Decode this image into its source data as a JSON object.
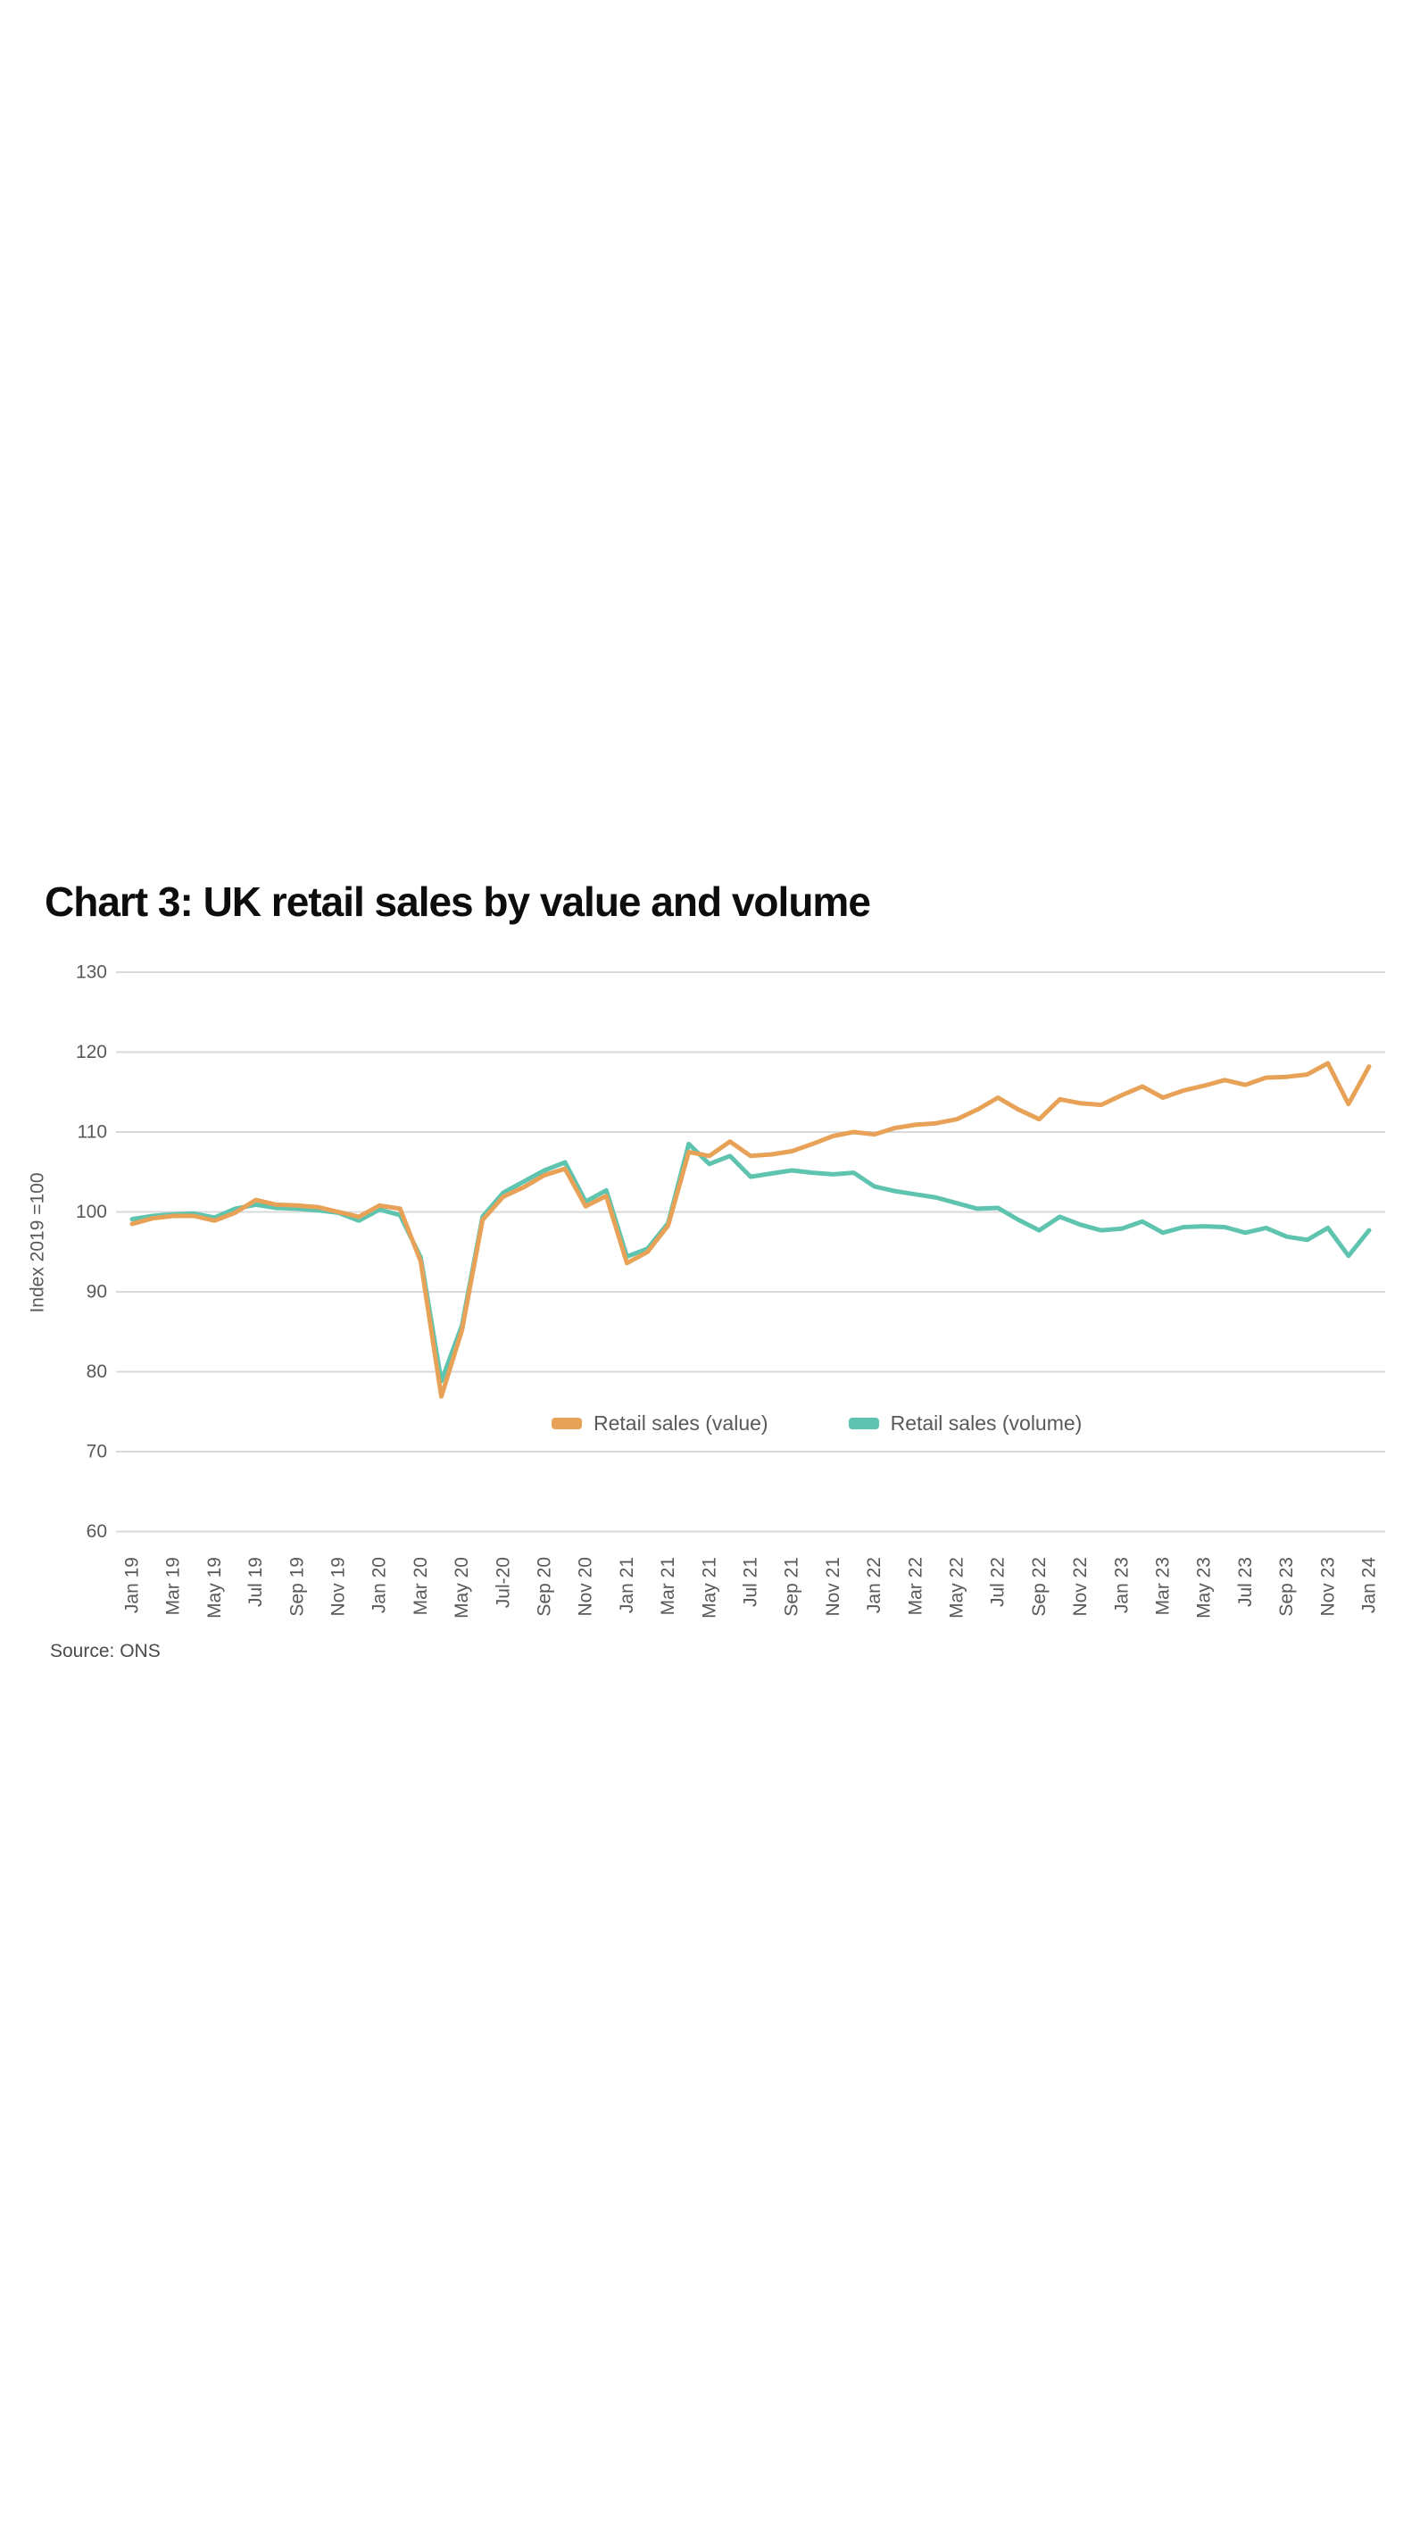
{
  "chart": {
    "title": "Chart 3: UK retail sales by value and volume",
    "y_axis_title": "Index 2019 =100",
    "source": "Source: ONS"
  },
  "legend": {
    "items": [
      {
        "label": "Retail sales (value)",
        "color": "#E8A257"
      },
      {
        "label": "Retail sales (volume)",
        "color": "#5FC4AF"
      }
    ]
  },
  "chart_data": {
    "type": "line",
    "title": "Chart 3: UK retail sales by value and volume",
    "ylabel": "Index 2019 =100",
    "xlabel": "",
    "ylim": [
      60,
      130
    ],
    "y_ticks": [
      130,
      120,
      110,
      100,
      90,
      80,
      70,
      60
    ],
    "grid": "horizontal",
    "grid_color": "#d9d9d9",
    "text_color": "#595959",
    "legend_position": "inside-bottom-center",
    "x_interval": "monthly",
    "x_range": "Jan 2019 to Jan 2024",
    "x_tick_labels": [
      "Jan 19",
      "Mar 19",
      "May 19",
      "Jul 19",
      "Sep 19",
      "Nov 19",
      "Jan 20",
      "Mar 20",
      "May 20",
      "Jul-20",
      "Sep 20",
      "Nov 20",
      "Jan 21",
      "Mar 21",
      "May 21",
      "Jul 21",
      "Sep 21",
      "Nov 21",
      "Jan 22",
      "Mar 22",
      "May 22",
      "Jul 22",
      "Sep 22",
      "Nov 22",
      "Jan 23",
      "Mar 23",
      "May 23",
      "Jul 23",
      "Sep 23",
      "Nov 23",
      "Jan 24"
    ],
    "series": [
      {
        "name": "Retail sales (value)",
        "color": "#E8A257",
        "values": [
          98.5,
          99.2,
          99.5,
          99.5,
          98.9,
          99.9,
          101.5,
          100.9,
          100.8,
          100.6,
          100.0,
          99.4,
          100.8,
          100.4,
          93.8,
          76.9,
          85.2,
          99.0,
          101.9,
          103.1,
          104.6,
          105.4,
          100.7,
          102.0,
          93.6,
          95.0,
          98.3,
          107.5,
          107.0,
          108.8,
          107.0,
          107.2,
          107.6,
          108.5,
          109.5,
          110.0,
          109.7,
          110.5,
          110.9,
          111.1,
          111.6,
          112.8,
          114.3,
          112.8,
          111.6,
          114.1,
          113.6,
          113.4,
          114.6,
          115.7,
          114.3,
          115.2,
          115.8,
          116.5,
          115.9,
          116.8,
          116.9,
          117.2,
          118.6,
          113.5,
          118.2
        ]
      },
      {
        "name": "Retail sales (volume)",
        "color": "#5FC4AF",
        "values": [
          99.1,
          99.5,
          99.7,
          99.8,
          99.3,
          100.4,
          100.9,
          100.5,
          100.4,
          100.2,
          99.9,
          98.9,
          100.3,
          99.6,
          94.3,
          78.8,
          85.8,
          99.4,
          102.4,
          103.8,
          105.2,
          106.2,
          101.3,
          102.7,
          94.4,
          95.4,
          98.6,
          108.5,
          106.0,
          107.0,
          104.4,
          104.8,
          105.2,
          104.9,
          104.7,
          104.9,
          103.2,
          102.6,
          102.2,
          101.8,
          101.1,
          100.4,
          100.5,
          99.0,
          97.7,
          99.4,
          98.4,
          97.7,
          97.9,
          98.8,
          97.4,
          98.1,
          98.2,
          98.1,
          97.4,
          98.0,
          96.9,
          96.5,
          98.0,
          94.5,
          97.7
        ]
      }
    ],
    "source": "Source: ONS"
  }
}
